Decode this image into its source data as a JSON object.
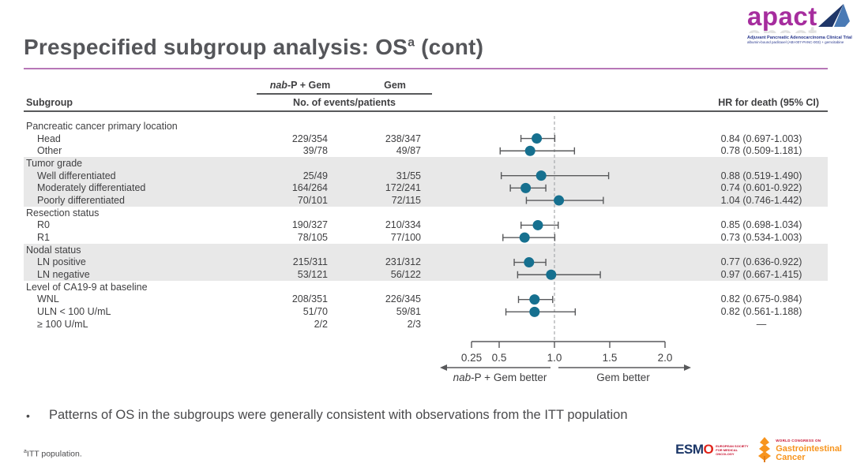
{
  "colors": {
    "accent_underline": "#b777b7",
    "point": "#16708f",
    "whisker": "#58595b",
    "reference_dash": "#a7a9ac",
    "band": "#e8e8e8",
    "apact_magenta": "#a62d9e",
    "logo_blue": "#2b3a8f",
    "esmo_navy": "#1b3667",
    "wcgc_orange": "#f7941d"
  },
  "title": {
    "text": "Prespecified subgroup analysis: OS",
    "superscript": "a",
    "cont": " (cont)"
  },
  "header": {
    "subgroup": "Subgroup",
    "arm1_italic": "nab",
    "arm1_rest": "-P + Gem",
    "arm2": "Gem",
    "events_label": "No. of events/patients",
    "hr_label": "HR for death (95% CI)"
  },
  "table": {
    "groups": [
      {
        "label": "Pancreatic cancer primary location",
        "shaded": false,
        "rows": [
          {
            "label": "Head",
            "arm1": "229/354",
            "arm2": "238/347",
            "hr_text": "0.84 (0.697-1.003)",
            "hr": 0.84,
            "lo": 0.697,
            "hi": 1.003
          },
          {
            "label": "Other",
            "arm1": "39/78",
            "arm2": "49/87",
            "hr_text": "0.78 (0.509-1.181)",
            "hr": 0.78,
            "lo": 0.509,
            "hi": 1.181
          }
        ]
      },
      {
        "label": "Tumor grade",
        "shaded": true,
        "rows": [
          {
            "label": "Well differentiated",
            "arm1": "25/49",
            "arm2": "31/55",
            "hr_text": "0.88 (0.519-1.490)",
            "hr": 0.88,
            "lo": 0.519,
            "hi": 1.49
          },
          {
            "label": "Moderately differentiated",
            "arm1": "164/264",
            "arm2": "172/241",
            "hr_text": "0.74 (0.601-0.922)",
            "hr": 0.74,
            "lo": 0.601,
            "hi": 0.922
          },
          {
            "label": "Poorly differentiated",
            "arm1": "70/101",
            "arm2": "72/115",
            "hr_text": "1.04 (0.746-1.442)",
            "hr": 1.04,
            "lo": 0.746,
            "hi": 1.442
          }
        ]
      },
      {
        "label": "Resection status",
        "shaded": false,
        "rows": [
          {
            "label": "R0",
            "arm1": "190/327",
            "arm2": "210/334",
            "hr_text": "0.85 (0.698-1.034)",
            "hr": 0.85,
            "lo": 0.698,
            "hi": 1.034
          },
          {
            "label": "R1",
            "arm1": "78/105",
            "arm2": "77/100",
            "hr_text": "0.73 (0.534-1.003)",
            "hr": 0.73,
            "lo": 0.534,
            "hi": 1.003
          }
        ]
      },
      {
        "label": "Nodal status",
        "shaded": true,
        "rows": [
          {
            "label": "LN positive",
            "arm1": "215/311",
            "arm2": "231/312",
            "hr_text": "0.77 (0.636-0.922)",
            "hr": 0.77,
            "lo": 0.636,
            "hi": 0.922
          },
          {
            "label": "LN negative",
            "arm1": "53/121",
            "arm2": "56/122",
            "hr_text": "0.97 (0.667-1.415)",
            "hr": 0.97,
            "lo": 0.667,
            "hi": 1.415
          }
        ]
      },
      {
        "label": "Level of CA19-9 at baseline",
        "shaded": false,
        "rows": [
          {
            "label": "WNL",
            "arm1": "208/351",
            "arm2": "226/345",
            "hr_text": "0.82 (0.675-0.984)",
            "hr": 0.82,
            "lo": 0.675,
            "hi": 0.984
          },
          {
            "label": "ULN < 100 U/mL",
            "arm1": "51/70",
            "arm2": "59/81",
            "hr_text": "0.82 (0.561-1.188)",
            "hr": 0.82,
            "lo": 0.561,
            "hi": 1.188
          },
          {
            "label": "≥ 100 U/mL",
            "arm1": "2/2",
            "arm2": "2/3",
            "hr_text": "—",
            "hr": null,
            "lo": null,
            "hi": null
          }
        ]
      }
    ]
  },
  "chart_data": {
    "type": "scatter",
    "variant": "forest_plot",
    "orientation": "horizontal",
    "x_scale": "linear",
    "xlim": [
      0.25,
      2.0
    ],
    "x_ticks": [
      "0.25",
      "0.5",
      "1.0",
      "1.5",
      "2.0"
    ],
    "reference_line_x": 1.0,
    "grid": false,
    "arrow_label_left_italic": "nab",
    "arrow_label_left_rest": "-P + Gem better",
    "arrow_label_right": "Gem better",
    "points": [
      {
        "subgroup": "Head",
        "hr": 0.84,
        "ci_low": 0.697,
        "ci_high": 1.003
      },
      {
        "subgroup": "Other",
        "hr": 0.78,
        "ci_low": 0.509,
        "ci_high": 1.181
      },
      {
        "subgroup": "Well differentiated",
        "hr": 0.88,
        "ci_low": 0.519,
        "ci_high": 1.49
      },
      {
        "subgroup": "Moderately differentiated",
        "hr": 0.74,
        "ci_low": 0.601,
        "ci_high": 0.922
      },
      {
        "subgroup": "Poorly differentiated",
        "hr": 1.04,
        "ci_low": 0.746,
        "ci_high": 1.442
      },
      {
        "subgroup": "R0",
        "hr": 0.85,
        "ci_low": 0.698,
        "ci_high": 1.034
      },
      {
        "subgroup": "R1",
        "hr": 0.73,
        "ci_low": 0.534,
        "ci_high": 1.003
      },
      {
        "subgroup": "LN positive",
        "hr": 0.77,
        "ci_low": 0.636,
        "ci_high": 0.922
      },
      {
        "subgroup": "LN negative",
        "hr": 0.97,
        "ci_low": 0.667,
        "ci_high": 1.415
      },
      {
        "subgroup": "WNL",
        "hr": 0.82,
        "ci_low": 0.675,
        "ci_high": 0.984
      },
      {
        "subgroup": "ULN < 100 U/mL",
        "hr": 0.82,
        "ci_low": 0.561,
        "ci_high": 1.188
      }
    ]
  },
  "bullet": {
    "marker": "•",
    "text": "Patterns of OS in the subgroups were generally consistent with observations from the ITT population"
  },
  "footnote": {
    "superscript": "a",
    "text": "ITT population."
  },
  "logos": {
    "apact": {
      "word": "apact",
      "line1": "Adjuvant Pancreatic Adenocarcinoma Clinical Trial",
      "line2": "albumin-bound paclitaxel (ABI-007-PANC-003) + gemcitabine"
    },
    "esmo": {
      "word_esm": "ESM",
      "word_o": "O",
      "sub": "EUROPEAN SOCIETY FOR MEDICAL ONCOLOGY"
    },
    "wcgc": {
      "line1": "WORLD CONGRESS ON",
      "line2": "Gastrointestinal",
      "line3": "Cancer"
    }
  }
}
